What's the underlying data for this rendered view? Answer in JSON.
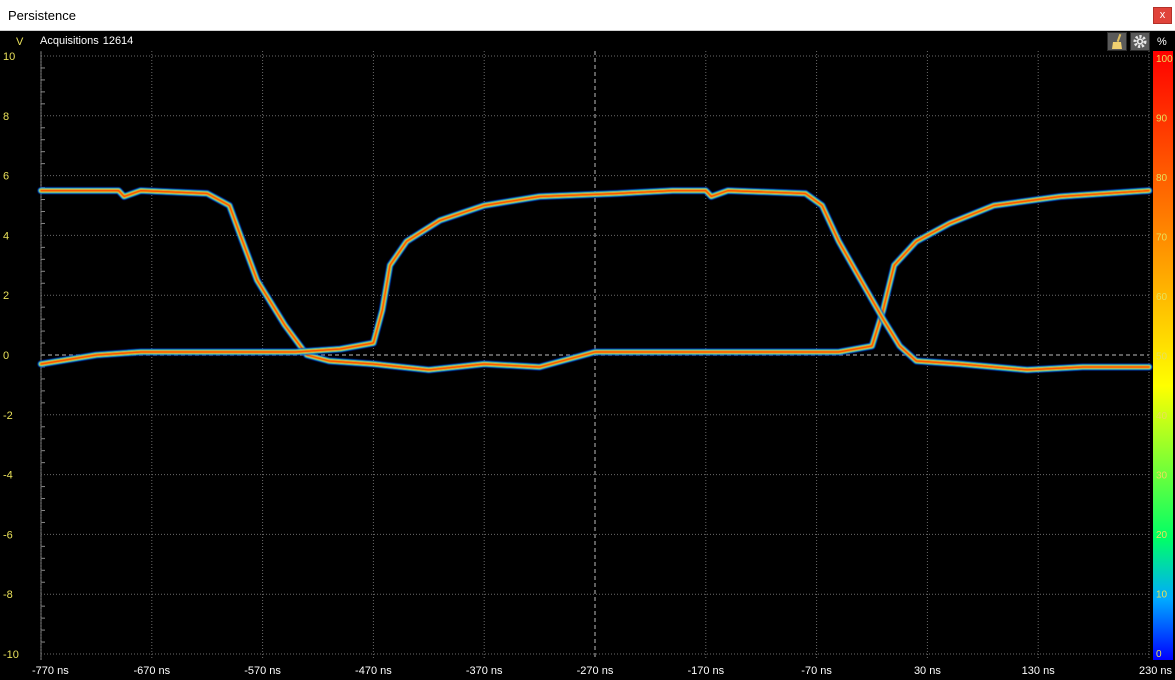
{
  "window": {
    "title": "Persistence",
    "close_label": "x"
  },
  "toolbar": {
    "acquisitions_label": "Acquisitions",
    "acquisitions_count": "12614",
    "clear_icon": "broom-icon",
    "settings_icon": "gear-icon"
  },
  "colors": {
    "grid": "#6a6a6a",
    "zero_line": "#bdbdbd",
    "axis_text_y": "#e8e05a",
    "axis_text_x": "#ffffff"
  },
  "chart_data": {
    "type": "line",
    "y_unit": "V",
    "colorbar_unit": "%",
    "ylim": [
      -10,
      10
    ],
    "xlim": [
      -770,
      230
    ],
    "y_ticks": [
      "10",
      "8",
      "6",
      "4",
      "2",
      "0",
      "-2",
      "-4",
      "-6",
      "-8",
      "-10"
    ],
    "x_ticks": [
      "-770 ns",
      "-670 ns",
      "-570 ns",
      "-470 ns",
      "-370 ns",
      "-270 ns",
      "-170 ns",
      "-70 ns",
      "30 ns",
      "130 ns",
      "230 ns"
    ],
    "colorbar_ticks": [
      "100",
      "90",
      "80",
      "70",
      "60",
      "50",
      "40",
      "30",
      "20",
      "10",
      "0"
    ],
    "grid": true,
    "series": [
      {
        "points": [
          [
            -770,
            5.5
          ],
          [
            -700,
            5.5
          ],
          [
            -695,
            5.3
          ],
          [
            -680,
            5.5
          ],
          [
            -620,
            5.4
          ],
          [
            -600,
            5.0
          ],
          [
            -590,
            4.0
          ],
          [
            -575,
            2.5
          ],
          [
            -550,
            1.0
          ],
          [
            -530,
            0.0
          ],
          [
            -510,
            -0.2
          ],
          [
            -470,
            -0.3
          ],
          [
            -420,
            -0.5
          ],
          [
            -370,
            -0.3
          ],
          [
            -320,
            -0.4
          ],
          [
            -270,
            0.1
          ],
          [
            -200,
            0.1
          ],
          [
            -120,
            0.1
          ],
          [
            -50,
            0.1
          ],
          [
            -20,
            0.3
          ],
          [
            -10,
            1.5
          ],
          [
            0,
            3.0
          ],
          [
            20,
            3.8
          ],
          [
            50,
            4.4
          ],
          [
            90,
            5.0
          ],
          [
            150,
            5.3
          ],
          [
            230,
            5.5
          ]
        ]
      },
      {
        "points": [
          [
            -770,
            -0.3
          ],
          [
            -720,
            0.0
          ],
          [
            -680,
            0.1
          ],
          [
            -600,
            0.1
          ],
          [
            -540,
            0.1
          ],
          [
            -500,
            0.2
          ],
          [
            -470,
            0.4
          ],
          [
            -462,
            1.5
          ],
          [
            -455,
            3.0
          ],
          [
            -440,
            3.8
          ],
          [
            -410,
            4.5
          ],
          [
            -370,
            5.0
          ],
          [
            -320,
            5.3
          ],
          [
            -250,
            5.4
          ],
          [
            -200,
            5.5
          ],
          [
            -170,
            5.5
          ],
          [
            -165,
            5.3
          ],
          [
            -150,
            5.5
          ],
          [
            -80,
            5.4
          ],
          [
            -65,
            5.0
          ],
          [
            -50,
            3.8
          ],
          [
            -30,
            2.5
          ],
          [
            -10,
            1.2
          ],
          [
            5,
            0.3
          ],
          [
            20,
            -0.2
          ],
          [
            60,
            -0.3
          ],
          [
            120,
            -0.5
          ],
          [
            170,
            -0.4
          ],
          [
            230,
            -0.4
          ]
        ]
      }
    ]
  }
}
